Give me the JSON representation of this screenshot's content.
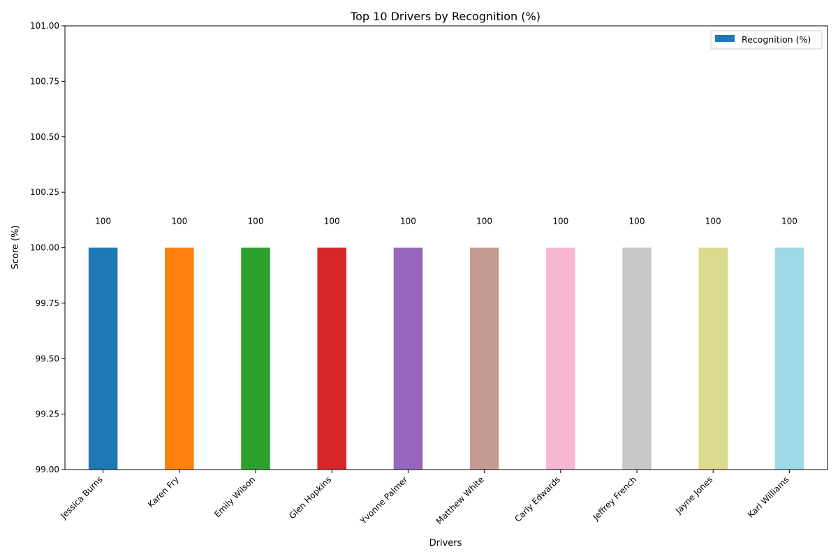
{
  "chart_data": {
    "type": "bar",
    "title": "Top 10 Drivers by Recognition (%)",
    "xlabel": "Drivers",
    "ylabel": "Score (%)",
    "ylim": [
      99.0,
      101.0
    ],
    "yticks": [
      "99.00",
      "99.25",
      "99.50",
      "99.75",
      "100.00",
      "100.25",
      "100.50",
      "100.75",
      "101.00"
    ],
    "categories": [
      "Jessica Burns",
      "Karen Fry",
      "Emily Wilson",
      "Glen Hopkins",
      "Yvonne Palmer",
      "Matthew White",
      "Carly Edwards",
      "Jeffrey French",
      "Jayne Jones",
      "Karl Williams"
    ],
    "values": [
      100,
      100,
      100,
      100,
      100,
      100,
      100,
      100,
      100,
      100
    ],
    "data_labels": [
      "100",
      "100",
      "100",
      "100",
      "100",
      "100",
      "100",
      "100",
      "100",
      "100"
    ],
    "colors": [
      "#1f77b4",
      "#ff7f0e",
      "#2ca02c",
      "#d62728",
      "#9467bd",
      "#c49c94",
      "#f7b6d2",
      "#c7c7c7",
      "#dbdb8d",
      "#9edae5"
    ],
    "legend": {
      "label": "Recognition (%)",
      "color": "#1f77b4",
      "position": "top-right"
    },
    "grid": false
  }
}
